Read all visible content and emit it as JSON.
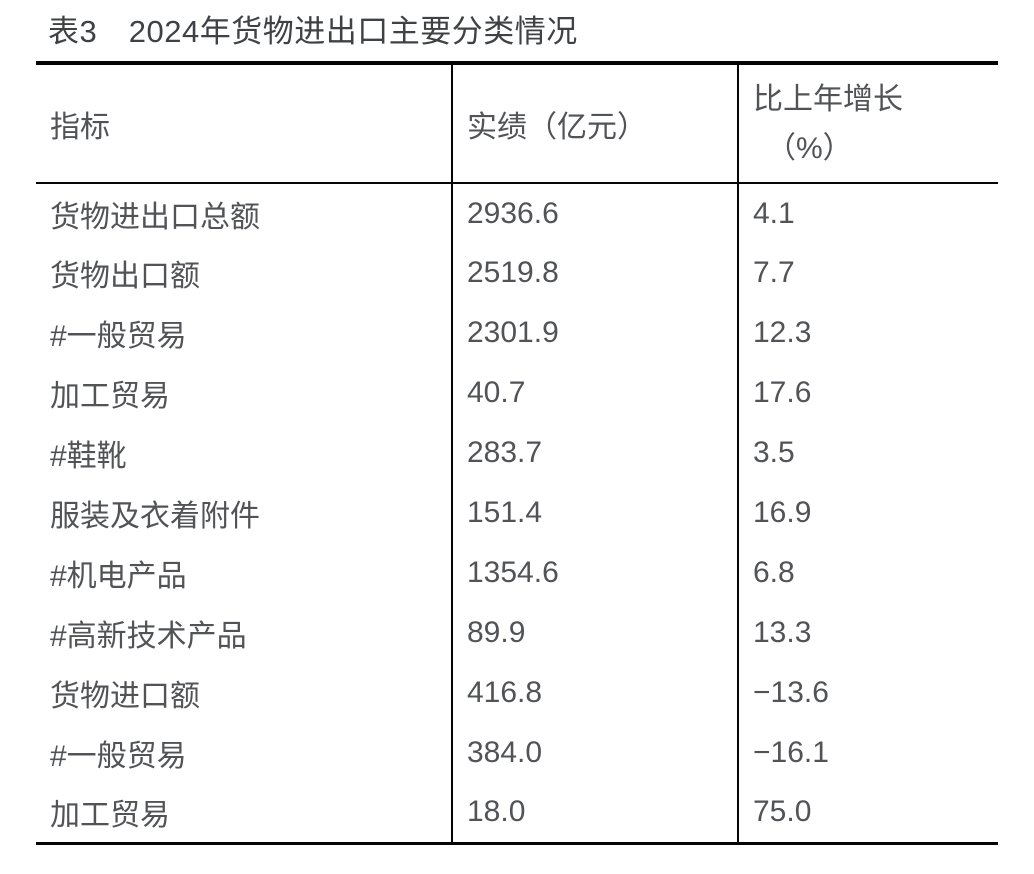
{
  "table": {
    "title": "表3　2024年货物进出口主要分类情况",
    "headers": {
      "indicator": "指标",
      "value": "实绩（亿元）",
      "growth_line1": "比上年增长",
      "growth_line2": "（%）"
    },
    "rows": [
      {
        "indicator": "货物进出口总额",
        "value": "2936.6",
        "growth": "4.1"
      },
      {
        "indicator": "货物出口额",
        "value": "2519.8",
        "growth": "7.7"
      },
      {
        "indicator": "#一般贸易",
        "value": "2301.9",
        "growth": "12.3"
      },
      {
        "indicator": "加工贸易",
        "value": "40.7",
        "growth": "17.6"
      },
      {
        "indicator": "#鞋靴",
        "value": "283.7",
        "growth": "3.5"
      },
      {
        "indicator": "服装及衣着附件",
        "value": "151.4",
        "growth": "16.9"
      },
      {
        "indicator": "#机电产品",
        "value": "1354.6",
        "growth": "6.8"
      },
      {
        "indicator": "#高新技术产品",
        "value": "89.9",
        "growth": "13.3"
      },
      {
        "indicator": "货物进口额",
        "value": "416.8",
        "growth": "−13.6"
      },
      {
        "indicator": "#一般贸易",
        "value": "384.0",
        "growth": "−16.1"
      },
      {
        "indicator": "加工贸易",
        "value": "18.0",
        "growth": "75.0"
      }
    ]
  }
}
